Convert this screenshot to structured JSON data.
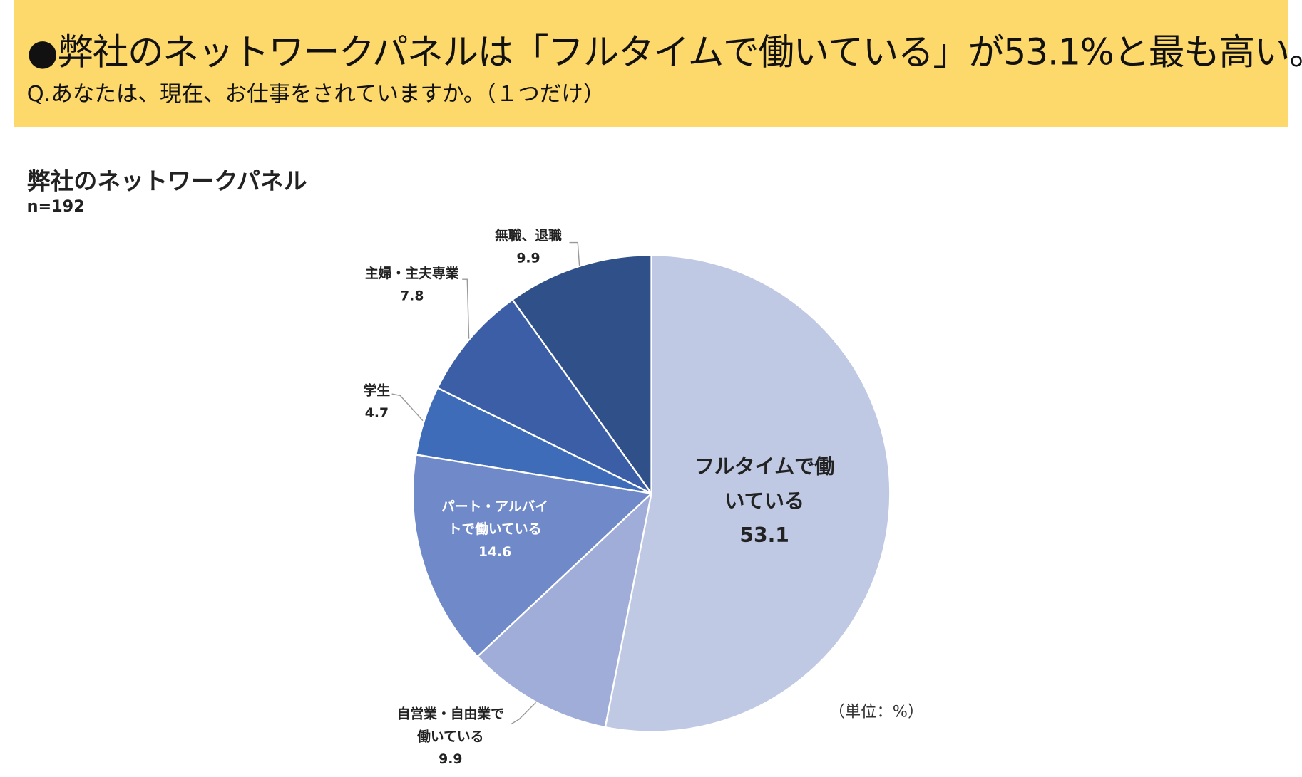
{
  "header": {
    "title": "●弊社のネットワークパネルは「フルタイムで働いている」が53.1%と最も高い。",
    "question": "Q.あなたは、現在、お仕事をされていますか。（１つだけ）"
  },
  "chart_data": {
    "type": "pie",
    "title": "弊社のネットワークパネル",
    "subtitle": "n=192",
    "unit_note": "（単位：%）",
    "categories": [
      "フルタイムで働いている",
      "自営業・自由業で働いている",
      "パート・アルバイトで働いている",
      "学生",
      "主婦・主夫専業",
      "無職、退職"
    ],
    "values": [
      53.1,
      9.9,
      14.6,
      4.7,
      7.8,
      9.9
    ],
    "colors": [
      "#bfc9e4",
      "#9fadd8",
      "#6f89c9",
      "#3f6cb9",
      "#3b5ea6",
      "#30508a"
    ]
  }
}
